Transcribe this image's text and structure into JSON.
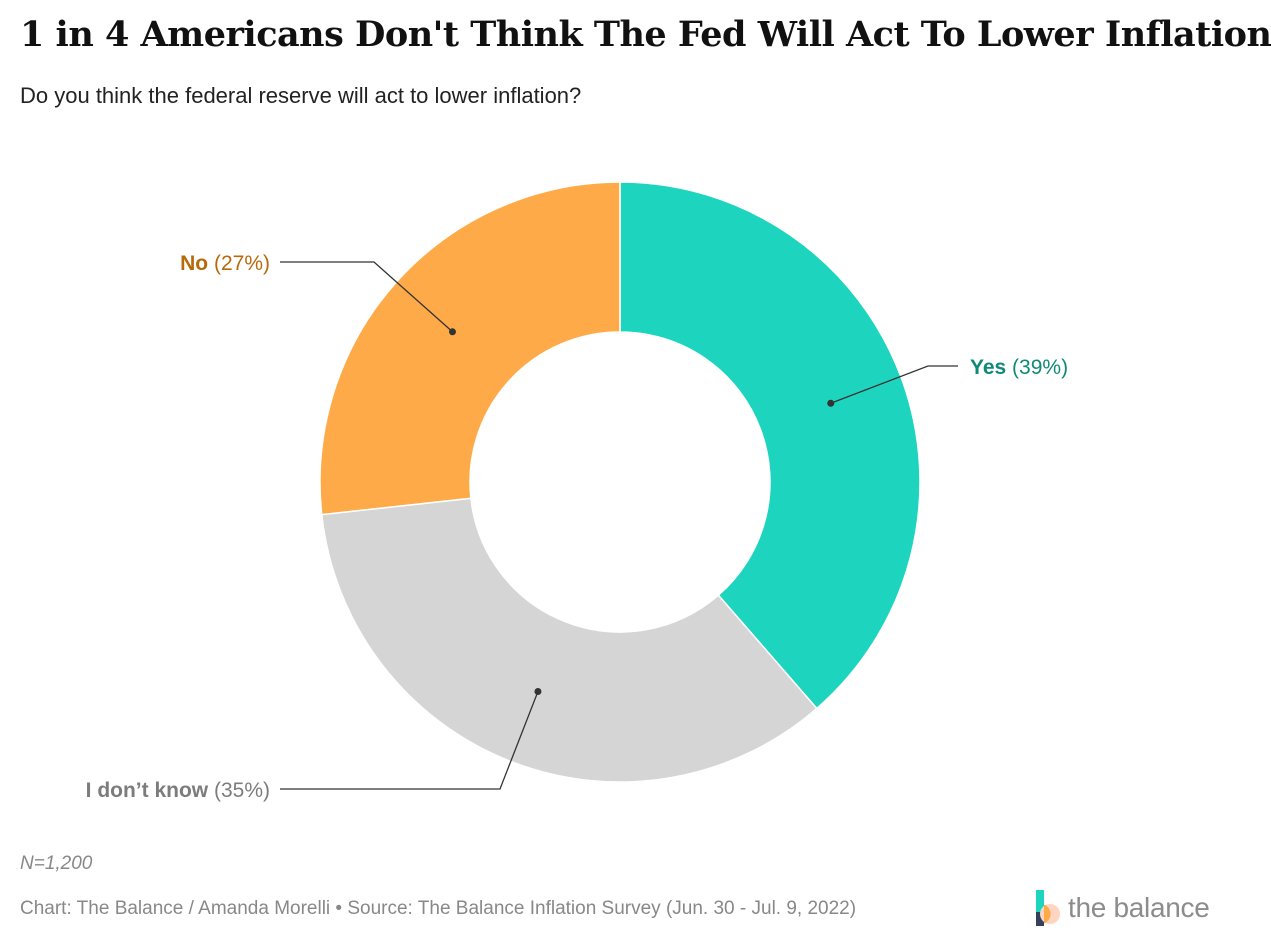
{
  "header": {
    "title": "1 in 4 Americans Don't Think The Fed Will Act To Lower Inflation",
    "subtitle": "Do you think the federal reserve will act to lower inflation?"
  },
  "chart_data": {
    "type": "pie",
    "variant": "donut",
    "title": "1 in 4 Americans Don't Think The Fed Will Act To Lower Inflation",
    "subtitle": "Do you think the federal reserve will act to lower inflation?",
    "slices": [
      {
        "label": "Yes",
        "value": 39,
        "value_label": "(39%)",
        "color": "#1dd5be",
        "label_color": "#0f8a76"
      },
      {
        "label": "I don’t know",
        "value": 35,
        "value_label": "(35%)",
        "color": "#d5d5d5",
        "label_color": "#7c7c7c"
      },
      {
        "label": "No",
        "value": 27,
        "value_label": "(27%)",
        "color": "#ffaa48",
        "label_color": "#b8690a"
      }
    ]
  },
  "footer": {
    "note": "N=1,200",
    "source": "Chart: The Balance / Amanda Morelli • Source: The Balance Inflation Survey (Jun. 30 - Jul. 9, 2022)",
    "brand": "the balance"
  },
  "colors": {
    "brand_teal": "#1dd5be",
    "brand_orange": "#ffaa48",
    "brand_peach": "#fdd5c0",
    "brand_navy": "#34405c"
  }
}
